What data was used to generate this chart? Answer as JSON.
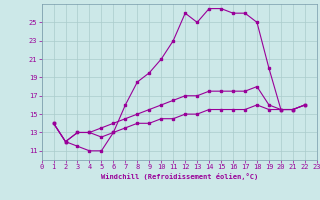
{
  "background_color": "#cce8e8",
  "grid_color": "#aacccc",
  "line_color": "#990099",
  "xlabel": "Windchill (Refroidissement éolien,°C)",
  "xlim": [
    0,
    23
  ],
  "ylim": [
    10,
    27
  ],
  "yticks": [
    11,
    13,
    15,
    17,
    19,
    21,
    23,
    25
  ],
  "xticks": [
    0,
    1,
    2,
    3,
    4,
    5,
    6,
    7,
    8,
    9,
    10,
    11,
    12,
    13,
    14,
    15,
    16,
    17,
    18,
    19,
    20,
    21,
    22,
    23
  ],
  "series": [
    {
      "x": [
        1,
        2,
        3,
        4,
        5,
        6,
        7,
        8,
        9,
        10,
        11,
        12,
        13,
        14,
        15,
        16,
        17,
        18,
        19,
        20,
        21,
        22
      ],
      "y": [
        14,
        12,
        11.5,
        11,
        11,
        13,
        16,
        18.5,
        19.5,
        21,
        23,
        26,
        25,
        26.5,
        26.5,
        26,
        26,
        25,
        20,
        15.5,
        15.5,
        16
      ]
    },
    {
      "x": [
        1,
        2,
        3,
        4,
        5,
        6,
        7,
        8,
        9,
        10,
        11,
        12,
        13,
        14,
        15,
        16,
        17,
        18,
        19,
        20,
        21,
        22
      ],
      "y": [
        14,
        12,
        13,
        13,
        13.5,
        14,
        14.5,
        15,
        15.5,
        16,
        16.5,
        17,
        17,
        17.5,
        17.5,
        17.5,
        17.5,
        18,
        16,
        15.5,
        15.5,
        16
      ]
    },
    {
      "x": [
        1,
        2,
        3,
        4,
        5,
        6,
        7,
        8,
        9,
        10,
        11,
        12,
        13,
        14,
        15,
        16,
        17,
        18,
        19,
        20,
        21,
        22
      ],
      "y": [
        14,
        12,
        13,
        13,
        12.5,
        13,
        13.5,
        14,
        14,
        14.5,
        14.5,
        15,
        15,
        15.5,
        15.5,
        15.5,
        15.5,
        16,
        15.5,
        15.5,
        15.5,
        16
      ]
    }
  ]
}
